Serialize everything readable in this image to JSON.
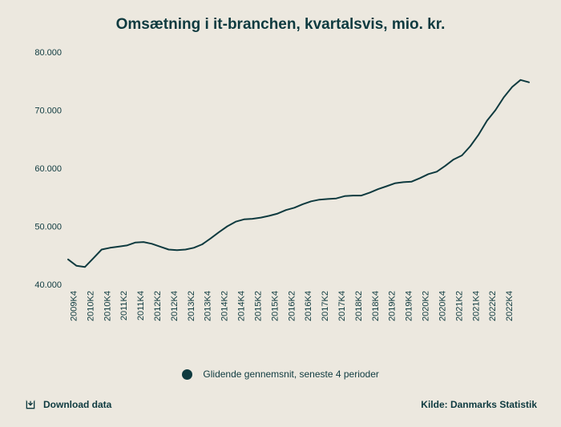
{
  "chart": {
    "type": "line",
    "title": "Omsætning i it-branchen, kvartalsvis, mio. kr.",
    "line_color": "#0e3a3f",
    "line_width": 2,
    "background_color": "#ece8df",
    "title_fontsize": 19,
    "tick_fontsize": 11,
    "text_color": "#0e3a3f",
    "y": {
      "min": 40000,
      "max": 80000,
      "tick_step": 10000,
      "tick_labels": [
        "40.000",
        "50.000",
        "60.000",
        "70.000",
        "80.000"
      ]
    },
    "x_labels": [
      "2009K4",
      "2010K2",
      "2010K4",
      "2011K2",
      "2011K4",
      "2012K2",
      "2012K4",
      "2013K2",
      "2013K4",
      "2014K2",
      "2014K4",
      "2015K2",
      "2015K4",
      "2016K2",
      "2016K4",
      "2017K2",
      "2017K4",
      "2018K2",
      "2018K4",
      "2019K2",
      "2019K4",
      "2020K2",
      "2020K4",
      "2021K2",
      "2021K4",
      "2022K2",
      "2022K4"
    ],
    "values": [
      44300,
      43200,
      43000,
      44500,
      46000,
      46300,
      46500,
      46700,
      47200,
      47300,
      47000,
      46500,
      46000,
      45900,
      46000,
      46300,
      46900,
      47900,
      49000,
      50000,
      50800,
      51200,
      51300,
      51500,
      51800,
      52200,
      52800,
      53200,
      53800,
      54300,
      54600,
      54700,
      54800,
      55200,
      55300,
      55300,
      55800,
      56400,
      56900,
      57400,
      57600,
      57700,
      58300,
      59000,
      59400,
      60400,
      61500,
      62200,
      63800,
      65800,
      68200,
      70000,
      72200,
      74000,
      75200,
      74800
    ]
  },
  "legend": {
    "dot_color": "#0e3a3f",
    "label": "Glidende gennemsnit, seneste 4 perioder"
  },
  "footer": {
    "download_label": "Download data",
    "source_label": "Kilde: Danmarks Statistik"
  }
}
